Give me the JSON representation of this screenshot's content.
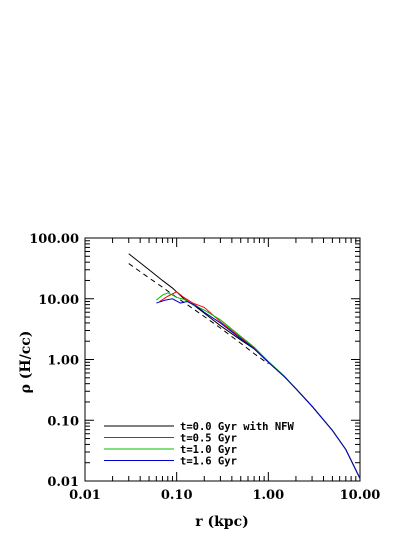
{
  "chart_data": {
    "type": "line",
    "xlabel": "r (kpc)",
    "ylabel": "ρ (H/cc)",
    "xscale": "log",
    "yscale": "log",
    "xlim": [
      0.01,
      10.0
    ],
    "ylim": [
      0.01,
      100.0
    ],
    "x_tick_labels": [
      "0.01",
      "0.10",
      "1.00",
      "10.00"
    ],
    "y_tick_labels": [
      "0.01",
      "0.10",
      "1.00",
      "10.00",
      "100.00"
    ],
    "x_tick_values": [
      0.01,
      0.1,
      1.0,
      10.0
    ],
    "y_tick_values": [
      0.01,
      0.1,
      1.0,
      10.0,
      100.0
    ],
    "grid": false,
    "legend_position": "bottom-left",
    "series": [
      {
        "name": "t=0.0 Gyr with NFW",
        "color": "#000000",
        "x": [
          0.03,
          0.05,
          0.07,
          0.09,
          0.12,
          0.16,
          0.2,
          0.3,
          0.5,
          0.7,
          1.0,
          1.5,
          2.0,
          3.0,
          5.0,
          7.0,
          10.0
        ],
        "y": [
          55,
          30,
          20,
          15,
          10,
          7.5,
          5.8,
          3.6,
          2.1,
          1.5,
          0.9,
          0.52,
          0.33,
          0.17,
          0.068,
          0.033,
          0.011
        ]
      },
      {
        "name": "NFW",
        "color": "#000000",
        "dashed": true,
        "x": [
          0.03,
          0.05,
          0.07,
          0.1,
          0.15,
          0.2,
          0.3,
          0.5,
          0.7,
          1.0
        ],
        "y": [
          38,
          22,
          15.5,
          10.5,
          6.9,
          5.1,
          3.3,
          1.85,
          1.25,
          0.85
        ]
      },
      {
        "name": "t=0.5 Gyr",
        "color": "#ff0000",
        "x": [
          0.065,
          0.08,
          0.1,
          0.12,
          0.15,
          0.2,
          0.3,
          0.5,
          0.7,
          1.0,
          1.5,
          2.0,
          3.0,
          5.0,
          7.0,
          10.0
        ],
        "y": [
          9,
          11,
          13,
          10.5,
          8.5,
          7.2,
          4.2,
          2.3,
          1.55,
          0.92,
          0.52,
          0.33,
          0.17,
          0.068,
          0.033,
          0.011
        ]
      },
      {
        "name": "t=1.0 Gyr",
        "color": "#00c000",
        "x": [
          0.06,
          0.07,
          0.08,
          0.09,
          0.1,
          0.12,
          0.15,
          0.2,
          0.3,
          0.5,
          0.7,
          1.0,
          1.5,
          2.0,
          3.0,
          5.0,
          7.0,
          10.0
        ],
        "y": [
          9.5,
          11.5,
          12.5,
          11.5,
          10.5,
          9.8,
          8.0,
          6.5,
          4.5,
          2.4,
          1.6,
          0.93,
          0.53,
          0.33,
          0.17,
          0.068,
          0.033,
          0.011
        ]
      },
      {
        "name": "t=1.6 Gyr",
        "color": "#0000cc",
        "x": [
          0.06,
          0.075,
          0.09,
          0.11,
          0.13,
          0.16,
          0.2,
          0.3,
          0.5,
          0.7,
          1.0,
          1.5,
          2.0,
          3.0,
          5.0,
          7.0,
          10.0
        ],
        "y": [
          8.5,
          9.5,
          10,
          8.5,
          9.0,
          7.8,
          6.0,
          4.0,
          2.2,
          1.5,
          0.9,
          0.52,
          0.33,
          0.17,
          0.068,
          0.033,
          0.011
        ]
      }
    ],
    "legend": [
      {
        "label": "t=0.0 Gyr with NFW",
        "color": "#000000"
      },
      {
        "label": "t=0.5 Gyr",
        "color": "#ff0000"
      },
      {
        "label": "t=1.0 Gyr",
        "color": "#00c000"
      },
      {
        "label": "t=1.6 Gyr",
        "color": "#0000cc"
      }
    ]
  }
}
